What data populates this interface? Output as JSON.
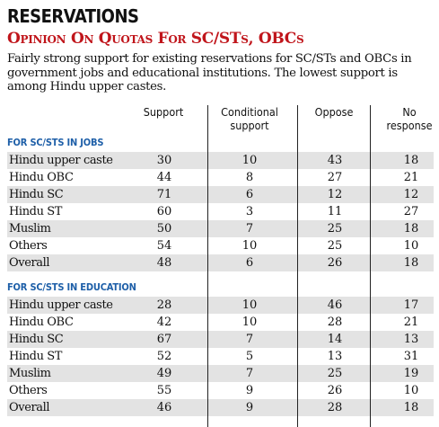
{
  "header": {
    "title": "RESERVATIONS",
    "subtitle": "Opinion On Quotas For SC/STs, OBCs",
    "description": "Fairly strong support for existing reservations for SC/STs and OBCs in government jobs and educational institutions. The lowest support is among Hindu upper castes."
  },
  "columns": [
    "Support",
    "Conditional support",
    "Oppose",
    "No response"
  ],
  "sections": [
    {
      "title": "FOR SC/STS IN JOBS",
      "rows": [
        {
          "label": "Hindu upper caste",
          "values": [
            "30",
            "10",
            "43",
            "18"
          ]
        },
        {
          "label": "Hindu OBC",
          "values": [
            "44",
            "8",
            "27",
            "21"
          ]
        },
        {
          "label": "Hindu SC",
          "values": [
            "71",
            "6",
            "12",
            "12"
          ]
        },
        {
          "label": "Hindu ST",
          "values": [
            "60",
            "3",
            "11",
            "27"
          ]
        },
        {
          "label": "Muslim",
          "values": [
            "50",
            "7",
            "25",
            "18"
          ]
        },
        {
          "label": "Others",
          "values": [
            "54",
            "10",
            "25",
            "10"
          ]
        },
        {
          "label": "Overall",
          "values": [
            "48",
            "6",
            "26",
            "18"
          ]
        }
      ]
    },
    {
      "title": "FOR SC/STS IN EDUCATION",
      "rows": [
        {
          "label": "Hindu upper caste",
          "values": [
            "28",
            "10",
            "46",
            "17"
          ]
        },
        {
          "label": "Hindu OBC",
          "values": [
            "42",
            "10",
            "28",
            "21"
          ]
        },
        {
          "label": "Hindu SC",
          "values": [
            "67",
            "7",
            "14",
            "13"
          ]
        },
        {
          "label": "Hindu ST",
          "values": [
            "52",
            "5",
            "13",
            "31"
          ]
        },
        {
          "label": "Muslim",
          "values": [
            "49",
            "7",
            "25",
            "19"
          ]
        },
        {
          "label": "Others",
          "values": [
            "55",
            "9",
            "26",
            "10"
          ]
        },
        {
          "label": "Overall",
          "values": [
            "46",
            "9",
            "28",
            "18"
          ]
        }
      ]
    }
  ]
}
